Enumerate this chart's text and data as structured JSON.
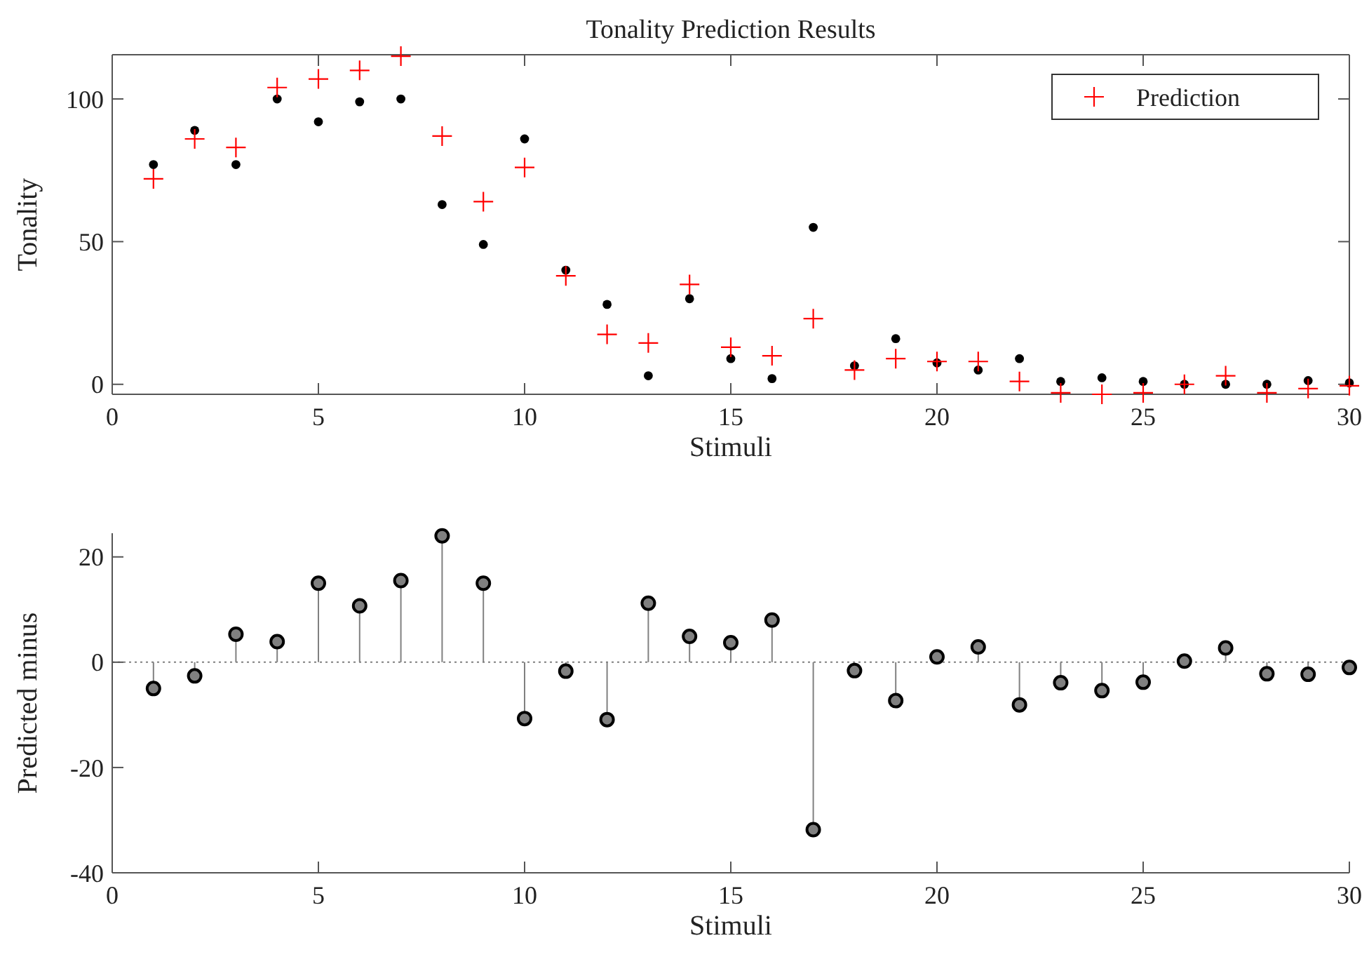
{
  "chart_data": [
    {
      "type": "scatter",
      "title": "Tonality Prediction Results",
      "xlabel": "Stimuli",
      "ylabel": "Tonality",
      "xlim": [
        0,
        30
      ],
      "xticks": [
        0,
        5,
        10,
        15,
        20,
        25,
        30
      ],
      "ylim": [
        -3.5,
        115.5
      ],
      "yticks": [
        0,
        50,
        100
      ],
      "legend": "top right",
      "grid": false,
      "x": [
        1,
        2,
        3,
        4,
        5,
        6,
        7,
        8,
        9,
        10,
        11,
        12,
        13,
        14,
        15,
        16,
        17,
        18,
        19,
        20,
        21,
        22,
        23,
        24,
        25,
        26,
        27,
        28,
        29,
        30
      ],
      "series": [
        {
          "color": "#000000",
          "marker": "circle",
          "values": [
            77,
            89,
            77,
            100,
            92,
            99,
            100,
            63,
            49,
            86,
            40,
            28,
            3,
            30,
            9,
            2,
            55,
            6.5,
            16,
            7.5,
            5,
            9,
            1,
            2.3,
            1,
            0,
            0,
            0,
            1.3,
            0.5
          ]
        },
        {
          "name": "Prediction",
          "color": "#ff0000",
          "marker": "cross",
          "values": [
            72,
            86,
            83,
            104,
            107,
            110,
            115,
            87,
            64,
            76,
            38,
            17.5,
            14.5,
            35,
            13,
            10,
            23,
            5,
            9,
            8,
            8,
            1,
            -3,
            -3.5,
            -3,
            0,
            3,
            -3,
            -1.5,
            -0.5
          ]
        }
      ]
    },
    {
      "type": "lollipop",
      "xlabel": "Stimuli",
      "ylabel": "Predicted minus",
      "xlim": [
        0,
        30
      ],
      "xticks": [
        0,
        5,
        10,
        15,
        20,
        25,
        30
      ],
      "ylim": [
        -40,
        24.5
      ],
      "yticks": [
        -40,
        -20,
        0,
        20
      ],
      "grid": false,
      "marker": "circle",
      "x": [
        1,
        2,
        3,
        4,
        5,
        6,
        7,
        8,
        9,
        10,
        11,
        12,
        13,
        14,
        15,
        16,
        17,
        18,
        19,
        20,
        21,
        22,
        23,
        24,
        25,
        26,
        27,
        28,
        29,
        30
      ],
      "series": [
        {
          "color": "#808080",
          "values": [
            -5,
            -2.6,
            5.3,
            3.9,
            15,
            10.7,
            15.5,
            24,
            15,
            -10.7,
            -1.7,
            -10.9,
            11.2,
            4.9,
            3.7,
            8,
            -31.8,
            -1.6,
            -7.3,
            1,
            2.9,
            -8.1,
            -3.9,
            -5.4,
            -3.8,
            0.2,
            2.7,
            -2.2,
            -2.3,
            -1
          ]
        }
      ],
      "ref_lines": [
        {
          "axis": "y",
          "value": 0,
          "line_style": "dotted",
          "color": "#808080"
        }
      ]
    }
  ]
}
